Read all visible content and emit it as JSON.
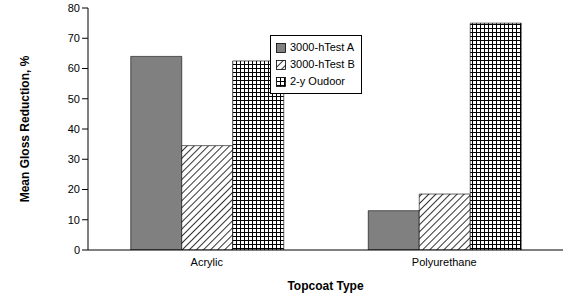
{
  "chart_data": {
    "type": "bar",
    "categories": [
      "Acrylic",
      "Polyurethane"
    ],
    "series": [
      {
        "name": "3000-hTest A",
        "color": "#808080",
        "values": [
          64,
          13
        ]
      },
      {
        "name": "3000-hTest B",
        "color": "#000000",
        "values": [
          34.5,
          18.5
        ]
      },
      {
        "name": "2-y Oudoor",
        "color": "#000000",
        "values": [
          62.5,
          75
        ]
      }
    ],
    "x_label": "Topcoat Type",
    "y_label": "Mean Gloss Reduction, %",
    "ylim": [
      0,
      80
    ],
    "yticks": [
      0,
      10,
      20,
      30,
      40,
      50,
      60,
      70,
      80
    ],
    "grid": false,
    "legend": "top-center"
  }
}
